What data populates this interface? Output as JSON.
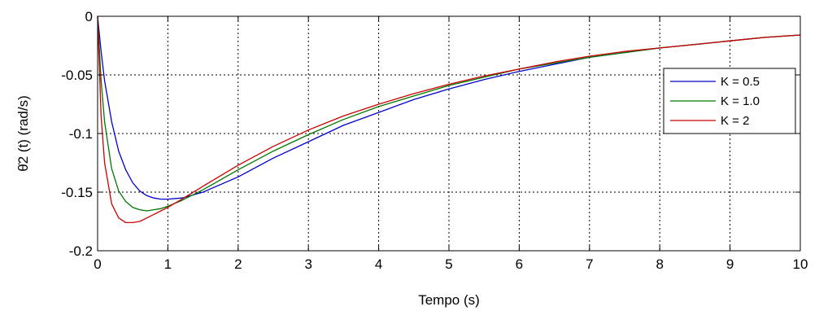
{
  "chart_data": {
    "type": "line",
    "title": "",
    "xlabel": "Tempo (s)",
    "ylabel": "θ̇2 (t) (rad/s)",
    "xlim": [
      0,
      10
    ],
    "ylim": [
      -0.2,
      0
    ],
    "xticks": [
      0,
      1,
      2,
      3,
      4,
      5,
      6,
      7,
      8,
      9,
      10
    ],
    "yticks": [
      0,
      -0.05,
      -0.1,
      -0.15,
      -0.2
    ],
    "xtick_labels": [
      "0",
      "1",
      "2",
      "3",
      "4",
      "5",
      "6",
      "7",
      "8",
      "9",
      "10"
    ],
    "ytick_labels": [
      "0",
      "-0.05",
      "-0.1",
      "-0.15",
      "-0.2"
    ],
    "grid": true,
    "legend_position": "top-right",
    "series": [
      {
        "name": "K = 0.5",
        "color": "#0000cc",
        "x": [
          0,
          0.05,
          0.1,
          0.2,
          0.3,
          0.4,
          0.5,
          0.6,
          0.7,
          0.8,
          0.9,
          1.0,
          1.2,
          1.5,
          2,
          2.5,
          3,
          3.5,
          4,
          4.5,
          5,
          5.5,
          6,
          6.5,
          7,
          7.5,
          8,
          8.5,
          9,
          9.5,
          10
        ],
        "y": [
          0,
          -0.03,
          -0.055,
          -0.09,
          -0.115,
          -0.131,
          -0.142,
          -0.149,
          -0.153,
          -0.155,
          -0.156,
          -0.156,
          -0.155,
          -0.15,
          -0.137,
          -0.121,
          -0.107,
          -0.093,
          -0.082,
          -0.071,
          -0.062,
          -0.054,
          -0.047,
          -0.041,
          -0.035,
          -0.031,
          -0.027,
          -0.024,
          -0.021,
          -0.018,
          -0.016
        ]
      },
      {
        "name": "K = 1.0",
        "color": "#007700",
        "x": [
          0,
          0.05,
          0.1,
          0.2,
          0.3,
          0.4,
          0.5,
          0.6,
          0.7,
          0.8,
          0.9,
          1.0,
          1.2,
          1.5,
          2,
          2.5,
          3,
          3.5,
          4,
          4.5,
          5,
          5.5,
          6,
          6.5,
          7,
          7.5,
          8,
          8.5,
          9,
          9.5,
          10
        ],
        "y": [
          0,
          -0.055,
          -0.09,
          -0.13,
          -0.149,
          -0.158,
          -0.163,
          -0.165,
          -0.166,
          -0.165,
          -0.164,
          -0.162,
          -0.157,
          -0.148,
          -0.131,
          -0.115,
          -0.101,
          -0.088,
          -0.077,
          -0.068,
          -0.059,
          -0.052,
          -0.045,
          -0.04,
          -0.035,
          -0.031,
          -0.027,
          -0.024,
          -0.021,
          -0.018,
          -0.016
        ]
      },
      {
        "name": "K = 2",
        "color": "#cc0000",
        "x": [
          0,
          0.05,
          0.1,
          0.2,
          0.3,
          0.4,
          0.5,
          0.6,
          0.7,
          0.8,
          0.9,
          1.0,
          1.2,
          1.5,
          2,
          2.5,
          3,
          3.5,
          4,
          4.5,
          5,
          5.5,
          6,
          6.5,
          7,
          7.5,
          8,
          8.5,
          9,
          9.5,
          10
        ],
        "y": [
          0,
          -0.085,
          -0.125,
          -0.16,
          -0.172,
          -0.176,
          -0.176,
          -0.175,
          -0.172,
          -0.169,
          -0.166,
          -0.163,
          -0.156,
          -0.145,
          -0.127,
          -0.111,
          -0.097,
          -0.085,
          -0.075,
          -0.066,
          -0.058,
          -0.051,
          -0.045,
          -0.039,
          -0.034,
          -0.03,
          -0.027,
          -0.024,
          -0.021,
          -0.018,
          -0.016
        ]
      }
    ]
  }
}
